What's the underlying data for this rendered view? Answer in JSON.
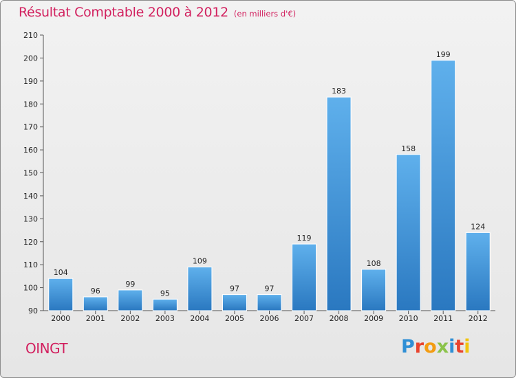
{
  "chart_data": {
    "type": "bar",
    "title": "Résultat Comptable 2000 à 2012",
    "subtitle": "(en milliers d'€)",
    "categories": [
      "2000",
      "2001",
      "2002",
      "2003",
      "2004",
      "2005",
      "2006",
      "2007",
      "2008",
      "2009",
      "2010",
      "2011",
      "2012"
    ],
    "values": [
      104,
      96,
      99,
      95,
      109,
      97,
      97,
      119,
      183,
      108,
      158,
      199,
      124
    ],
    "ylim": [
      90,
      210
    ],
    "yticks": [
      90,
      100,
      110,
      120,
      130,
      140,
      150,
      160,
      170,
      180,
      190,
      200,
      210
    ],
    "xlabel": "",
    "ylabel": "",
    "grid": false,
    "colors": {
      "bar_light": "#5fb0ec",
      "bar_dark": "#2a78c0",
      "axis": "#555555"
    }
  },
  "footer": {
    "commune": "OINGT",
    "logo_letters": [
      "P",
      "r",
      "o",
      "x",
      "i",
      "t",
      "i"
    ]
  }
}
